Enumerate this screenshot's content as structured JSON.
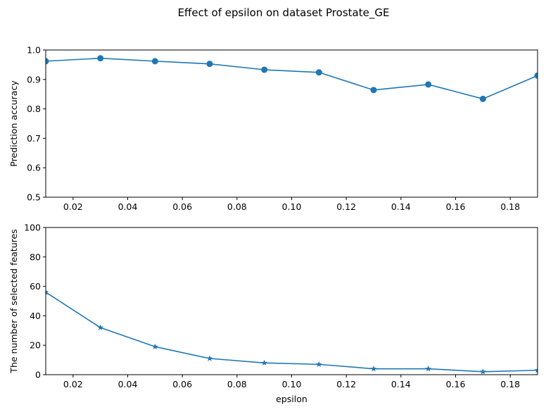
{
  "figure": {
    "title": "Effect of epsilon on dataset Prostate_GE"
  },
  "colors": {
    "series": "#1f77b4",
    "axes": "#000000",
    "background": "#ffffff"
  },
  "chart_data": [
    {
      "type": "line",
      "title": "",
      "xlabel": "",
      "ylabel": "Prediction accuracy",
      "marker": "circle",
      "xlim": [
        0.01,
        0.19
      ],
      "ylim": [
        0.5,
        1.0
      ],
      "grid": false,
      "xticks": [
        0.02,
        0.04,
        0.06,
        0.08,
        0.1,
        0.12,
        0.14,
        0.16,
        0.18
      ],
      "xtick_labels": [
        "0.02",
        "0.04",
        "0.06",
        "0.08",
        "0.10",
        "0.12",
        "0.14",
        "0.16",
        "0.18"
      ],
      "yticks": [
        0.5,
        0.6,
        0.7,
        0.8,
        0.9,
        1.0
      ],
      "ytick_labels": [
        "0.5",
        "0.6",
        "0.7",
        "0.8",
        "0.9",
        "1.0"
      ],
      "x": [
        0.01,
        0.03,
        0.05,
        0.07,
        0.09,
        0.11,
        0.13,
        0.15,
        0.17,
        0.19
      ],
      "y": [
        0.962,
        0.972,
        0.962,
        0.953,
        0.933,
        0.924,
        0.864,
        0.883,
        0.834,
        0.913
      ]
    },
    {
      "type": "line",
      "title": "",
      "xlabel": "epsilon",
      "ylabel": "The number of selected features",
      "marker": "star",
      "xlim": [
        0.01,
        0.19
      ],
      "ylim": [
        0,
        100
      ],
      "grid": false,
      "xticks": [
        0.02,
        0.04,
        0.06,
        0.08,
        0.1,
        0.12,
        0.14,
        0.16,
        0.18
      ],
      "xtick_labels": [
        "0.02",
        "0.04",
        "0.06",
        "0.08",
        "0.10",
        "0.12",
        "0.14",
        "0.16",
        "0.18"
      ],
      "yticks": [
        0,
        20,
        40,
        60,
        80,
        100
      ],
      "ytick_labels": [
        "0",
        "20",
        "40",
        "60",
        "80",
        "100"
      ],
      "x": [
        0.01,
        0.03,
        0.05,
        0.07,
        0.09,
        0.11,
        0.13,
        0.15,
        0.17,
        0.19
      ],
      "y": [
        56,
        32,
        19,
        11,
        8,
        7,
        4,
        4,
        2,
        3
      ]
    }
  ]
}
